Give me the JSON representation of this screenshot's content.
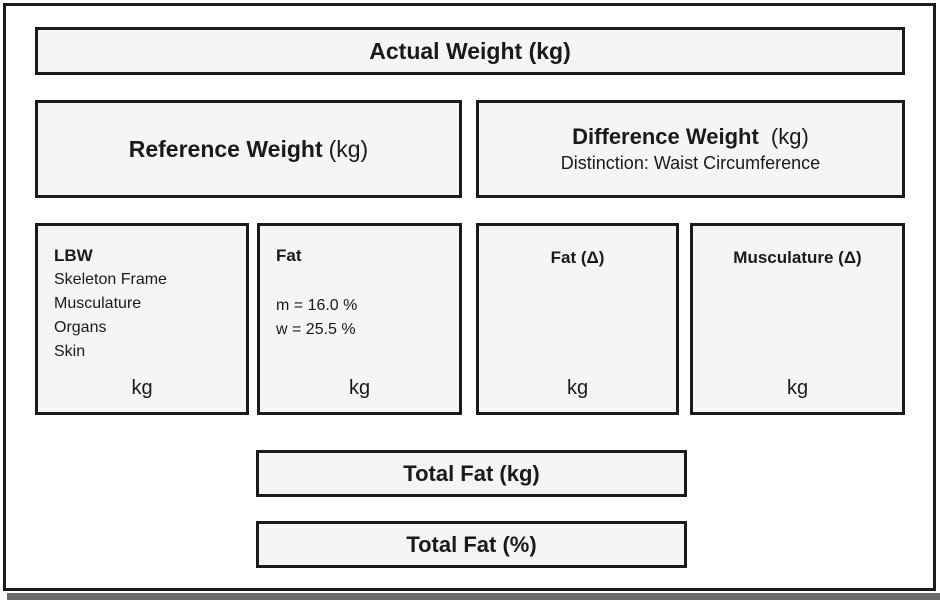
{
  "diagram": {
    "actual": {
      "label": "Actual Weight (kg)"
    },
    "reference": {
      "label": "Reference Weight",
      "unit": "(kg)"
    },
    "difference": {
      "label": "Difference Weight",
      "unit": "(kg)",
      "subtitle": "Distinction: Waist Circumference"
    },
    "lbw": {
      "title": "LBW",
      "items": [
        "Skeleton Frame",
        "Musculature",
        "Organs",
        "Skin"
      ],
      "unit_label": "kg"
    },
    "fat": {
      "title": "Fat",
      "male_value": "m = 16.0 %",
      "female_value": "w = 25.5 %",
      "unit_label": "kg"
    },
    "fat_delta": {
      "title": "Fat (Δ)",
      "unit_label": "kg"
    },
    "musculature_delta": {
      "title": "Musculature (Δ)",
      "unit_label": "kg"
    },
    "total_fat_kg": {
      "label": "Total Fat (kg)"
    },
    "total_fat_pct": {
      "label": "Total Fat (%)"
    },
    "colors": {
      "box_fill": "#f5f5f5",
      "box_border": "#1b1b1b",
      "frame_border": "#1c1c1c",
      "frame_shadow": "#6b6b6b",
      "text": "#1a1a1a",
      "background": "#ffffff"
    }
  }
}
